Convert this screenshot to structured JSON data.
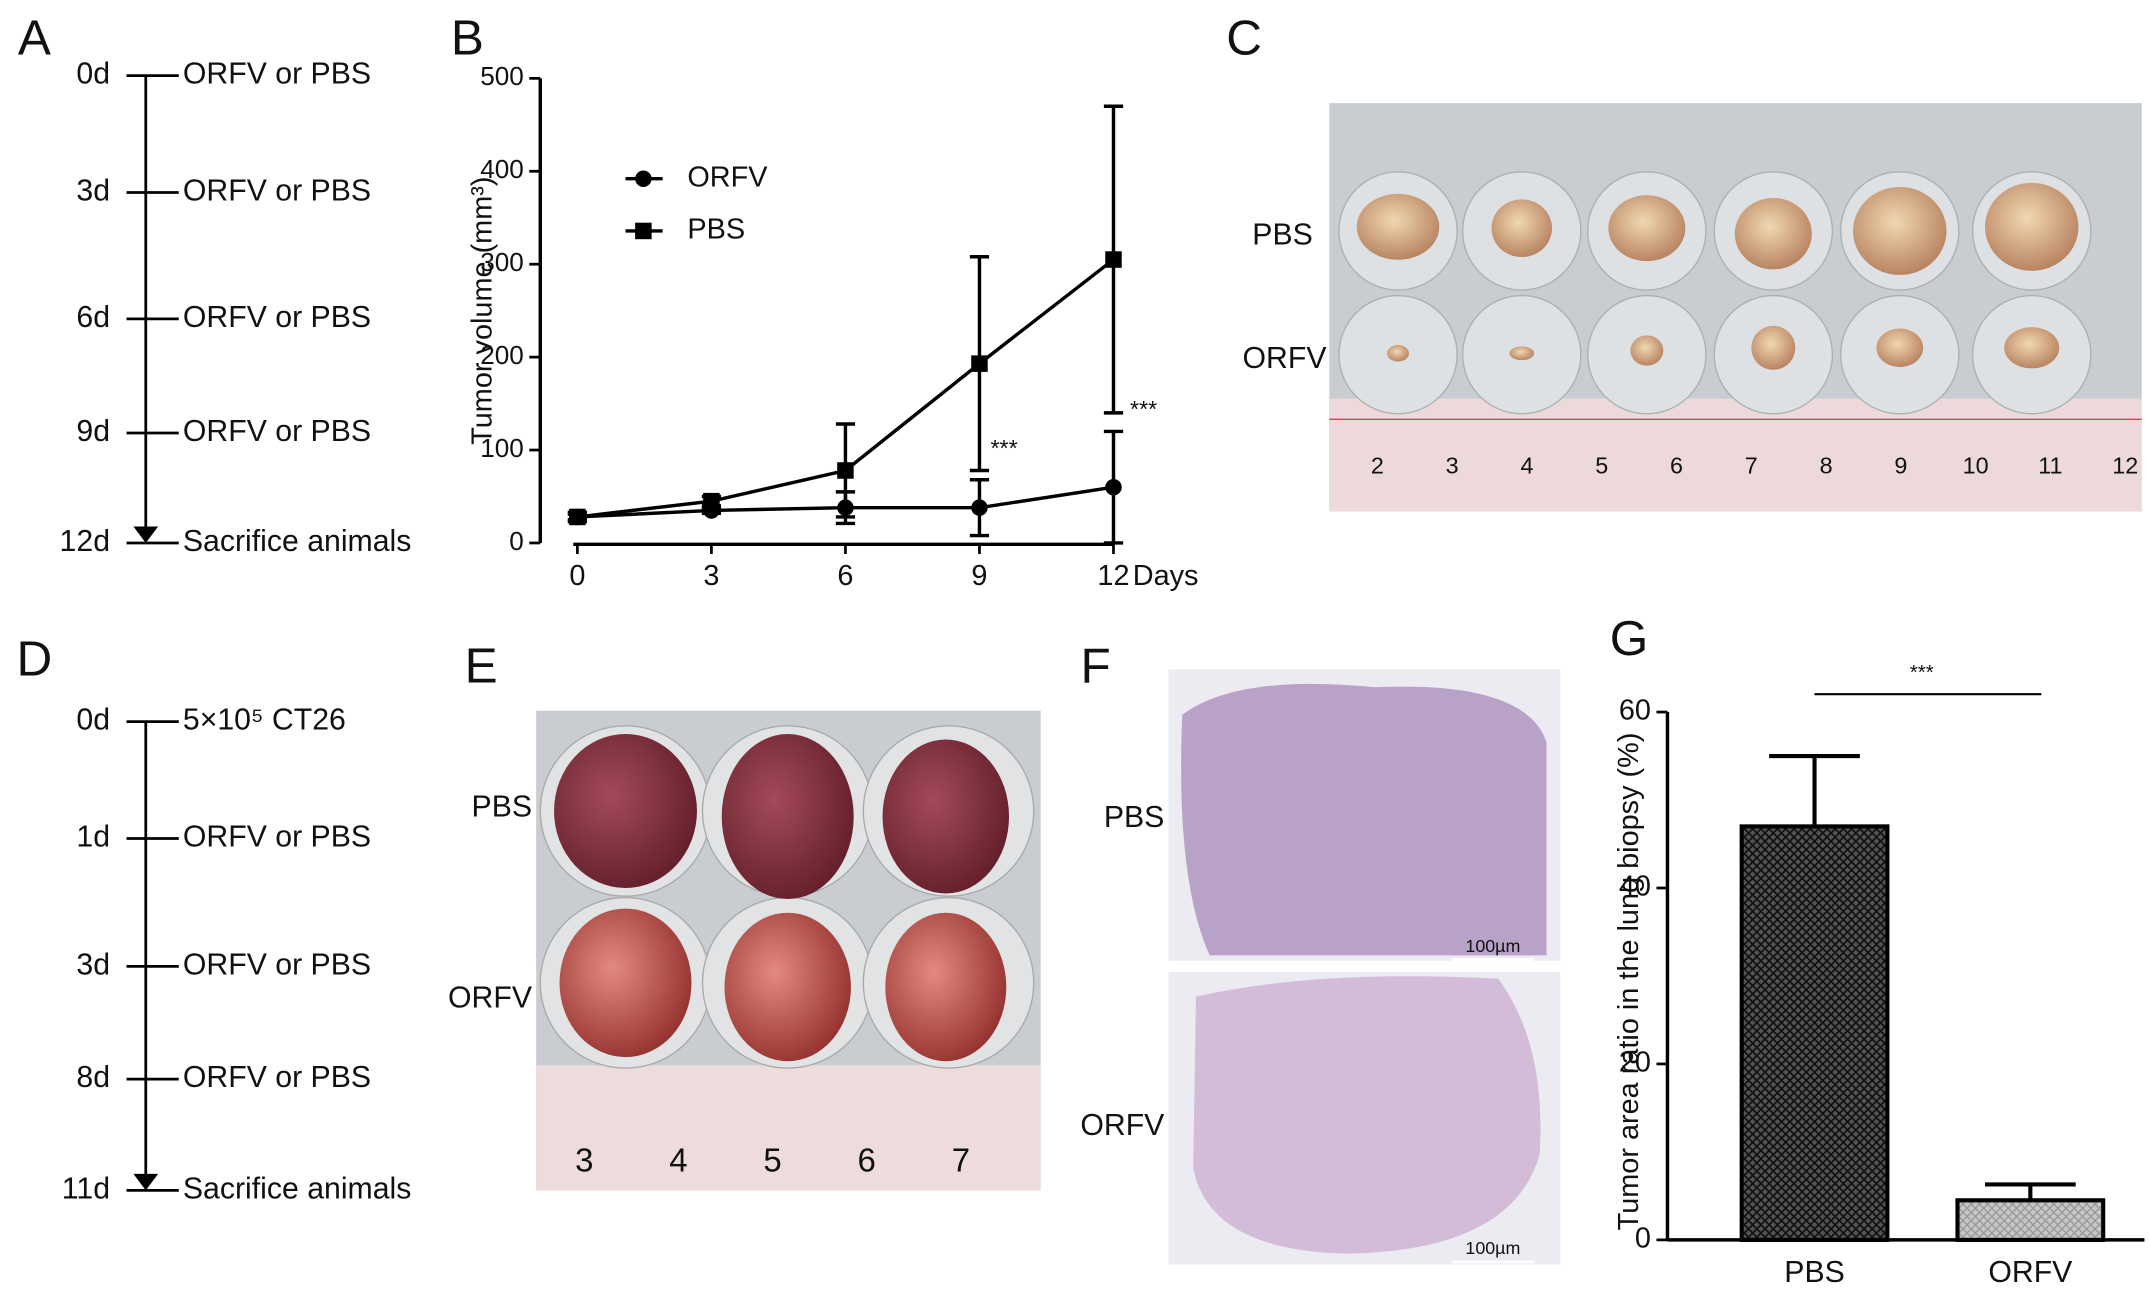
{
  "panel_labels": [
    "A",
    "B",
    "C",
    "D",
    "E",
    "F",
    "G"
  ],
  "timeline_a": {
    "events": [
      {
        "day": "0d",
        "text": "ORFV or PBS"
      },
      {
        "day": "3d",
        "text": "ORFV or PBS"
      },
      {
        "day": "6d",
        "text": "ORFV or PBS"
      },
      {
        "day": "9d",
        "text": "ORFV or PBS"
      },
      {
        "day": "12d",
        "text": "Sacrifice animals"
      }
    ]
  },
  "timeline_d": {
    "events": [
      {
        "day": "0d",
        "text": "5×10⁵ CT26"
      },
      {
        "day": "1d",
        "text": "ORFV or PBS"
      },
      {
        "day": "3d",
        "text": "ORFV or PBS"
      },
      {
        "day": "8d",
        "text": "ORFV or PBS"
      },
      {
        "day": "11d",
        "text": "Sacrifice animals"
      }
    ]
  },
  "chart_data": [
    {
      "type": "line",
      "xlabel": "Days",
      "ylabel": "Tumor volume (mm³)",
      "x": [
        0,
        3,
        6,
        9,
        12
      ],
      "xlim": [
        0,
        12
      ],
      "xticks": [
        0,
        3,
        6,
        9,
        12
      ],
      "ylim": [
        0,
        500
      ],
      "yticks": [
        0,
        100,
        200,
        300,
        400,
        500
      ],
      "legend": "upper left",
      "series": [
        {
          "name": "ORFV",
          "color": "#000000",
          "marker": "circle",
          "values": [
            28,
            35,
            38,
            38,
            60
          ],
          "errors": [
            3,
            3,
            17,
            30,
            60
          ]
        },
        {
          "name": "PBS",
          "color": "#000000",
          "marker": "square",
          "values": [
            28,
            45,
            78,
            193,
            305
          ],
          "errors": [
            5,
            5,
            50,
            115,
            165
          ]
        }
      ],
      "annotations": [
        "***",
        "***"
      ]
    },
    {
      "type": "bar",
      "ylabel": "Tumor area ratio in the lung biopsy (%)",
      "categories": [
        "PBS",
        "ORFV"
      ],
      "values": [
        47,
        4.5
      ],
      "errors": [
        8,
        1.8
      ],
      "ylim": [
        0,
        60
      ],
      "yticks": [
        0,
        20,
        40,
        60
      ],
      "colors": [
        "#3a3a3a",
        "#b8b8b8"
      ],
      "annotations": [
        "***"
      ]
    }
  ],
  "photo_c": {
    "row_labels": [
      "PBS",
      "ORFV"
    ],
    "ruler": [
      "2",
      "3",
      "4",
      "5",
      "6",
      "7",
      "8",
      "9",
      "10",
      "11",
      "12"
    ]
  },
  "photo_e": {
    "row_labels": [
      "PBS",
      "ORFV"
    ],
    "ruler": [
      "3",
      "4",
      "5",
      "6",
      "7"
    ]
  },
  "photo_f": {
    "row_labels": [
      "PBS",
      "ORFV"
    ],
    "scale_bars": [
      "100µm",
      "100µm"
    ]
  }
}
